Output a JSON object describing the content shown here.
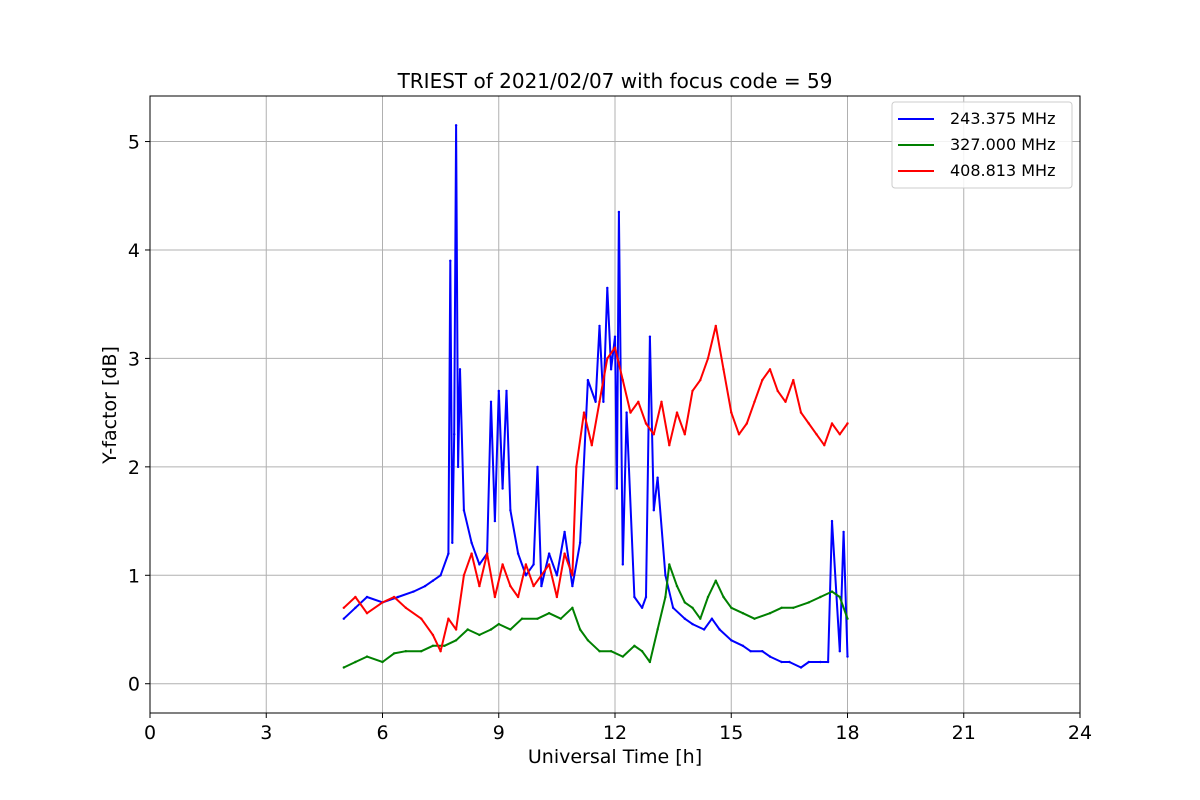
{
  "chart_data": {
    "type": "line",
    "title": "TRIEST of 2021/02/07 with focus code = 59",
    "xlabel": "Universal Time [h]",
    "ylabel": "Y-factor [dB]",
    "xlim": [
      0,
      24
    ],
    "ylim": [
      -0.27,
      5.42
    ],
    "xticks": [
      0,
      3,
      6,
      9,
      12,
      15,
      18,
      21,
      24
    ],
    "yticks": [
      0,
      1,
      2,
      3,
      4,
      5
    ],
    "grid": true,
    "legend_position": "top-right",
    "series": [
      {
        "name": "243.375 MHz",
        "color": "#0000ff",
        "x": [
          5.0,
          5.3,
          5.6,
          6.0,
          6.4,
          6.8,
          7.1,
          7.3,
          7.5,
          7.7,
          7.75,
          7.8,
          7.85,
          7.9,
          7.95,
          8.0,
          8.1,
          8.3,
          8.5,
          8.7,
          8.8,
          8.9,
          9.0,
          9.1,
          9.2,
          9.3,
          9.5,
          9.7,
          9.9,
          10.0,
          10.1,
          10.3,
          10.5,
          10.7,
          10.9,
          11.1,
          11.3,
          11.5,
          11.6,
          11.7,
          11.8,
          11.9,
          12.0,
          12.05,
          12.1,
          12.2,
          12.3,
          12.5,
          12.7,
          12.8,
          12.9,
          13.0,
          13.1,
          13.3,
          13.5,
          13.8,
          14.0,
          14.3,
          14.5,
          14.7,
          15.0,
          15.3,
          15.5,
          15.8,
          16.0,
          16.3,
          16.5,
          16.8,
          17.0,
          17.3,
          17.5,
          17.6,
          17.8,
          17.9,
          18.0
        ],
        "y": [
          0.6,
          0.7,
          0.8,
          0.75,
          0.8,
          0.85,
          0.9,
          0.95,
          1.0,
          1.2,
          3.9,
          1.3,
          2.3,
          5.15,
          2.0,
          2.9,
          1.6,
          1.3,
          1.1,
          1.2,
          2.6,
          1.5,
          2.7,
          1.8,
          2.7,
          1.6,
          1.2,
          1.0,
          1.1,
          2.0,
          0.9,
          1.2,
          1.0,
          1.4,
          0.9,
          1.3,
          2.8,
          2.6,
          3.3,
          2.6,
          3.65,
          2.9,
          3.2,
          1.8,
          4.35,
          1.1,
          2.5,
          0.8,
          0.7,
          0.8,
          3.2,
          1.6,
          1.9,
          1.0,
          0.7,
          0.6,
          0.55,
          0.5,
          0.6,
          0.5,
          0.4,
          0.35,
          0.3,
          0.3,
          0.25,
          0.2,
          0.2,
          0.15,
          0.2,
          0.2,
          0.2,
          1.5,
          0.3,
          1.4,
          0.25
        ]
      },
      {
        "name": "327.000 MHz",
        "color": "#008000",
        "x": [
          5.0,
          5.3,
          5.6,
          6.0,
          6.3,
          6.6,
          7.0,
          7.3,
          7.6,
          7.9,
          8.2,
          8.5,
          8.8,
          9.0,
          9.3,
          9.6,
          10.0,
          10.3,
          10.6,
          10.9,
          11.1,
          11.3,
          11.6,
          11.9,
          12.2,
          12.5,
          12.7,
          12.9,
          13.1,
          13.3,
          13.4,
          13.6,
          13.8,
          14.0,
          14.2,
          14.4,
          14.6,
          14.8,
          15.0,
          15.3,
          15.6,
          16.0,
          16.3,
          16.6,
          17.0,
          17.3,
          17.6,
          17.8,
          18.0
        ],
        "y": [
          0.15,
          0.2,
          0.25,
          0.2,
          0.28,
          0.3,
          0.3,
          0.35,
          0.35,
          0.4,
          0.5,
          0.45,
          0.5,
          0.55,
          0.5,
          0.6,
          0.6,
          0.65,
          0.6,
          0.7,
          0.5,
          0.4,
          0.3,
          0.3,
          0.25,
          0.35,
          0.3,
          0.2,
          0.5,
          0.8,
          1.1,
          0.9,
          0.75,
          0.7,
          0.6,
          0.8,
          0.95,
          0.8,
          0.7,
          0.65,
          0.6,
          0.65,
          0.7,
          0.7,
          0.75,
          0.8,
          0.85,
          0.8,
          0.6
        ]
      },
      {
        "name": "408.813 MHz",
        "color": "#ff0000",
        "x": [
          5.0,
          5.3,
          5.6,
          6.0,
          6.3,
          6.6,
          7.0,
          7.3,
          7.5,
          7.7,
          7.9,
          8.1,
          8.3,
          8.5,
          8.7,
          8.9,
          9.1,
          9.3,
          9.5,
          9.7,
          9.9,
          10.1,
          10.3,
          10.5,
          10.7,
          10.9,
          11.0,
          11.2,
          11.4,
          11.6,
          11.8,
          12.0,
          12.2,
          12.4,
          12.6,
          12.8,
          13.0,
          13.2,
          13.4,
          13.6,
          13.8,
          14.0,
          14.2,
          14.4,
          14.6,
          14.8,
          15.0,
          15.2,
          15.4,
          15.6,
          15.8,
          16.0,
          16.2,
          16.4,
          16.6,
          16.8,
          17.0,
          17.2,
          17.4,
          17.6,
          17.8,
          18.0
        ],
        "y": [
          0.7,
          0.8,
          0.65,
          0.75,
          0.8,
          0.7,
          0.6,
          0.45,
          0.3,
          0.6,
          0.5,
          1.0,
          1.2,
          0.9,
          1.2,
          0.8,
          1.1,
          0.9,
          0.8,
          1.1,
          0.9,
          1.0,
          1.1,
          0.8,
          1.2,
          1.0,
          2.0,
          2.5,
          2.2,
          2.6,
          3.0,
          3.1,
          2.8,
          2.5,
          2.6,
          2.4,
          2.3,
          2.6,
          2.2,
          2.5,
          2.3,
          2.7,
          2.8,
          3.0,
          3.3,
          2.9,
          2.5,
          2.3,
          2.4,
          2.6,
          2.8,
          2.9,
          2.7,
          2.6,
          2.8,
          2.5,
          2.4,
          2.3,
          2.2,
          2.4,
          2.3,
          2.4
        ]
      }
    ]
  }
}
